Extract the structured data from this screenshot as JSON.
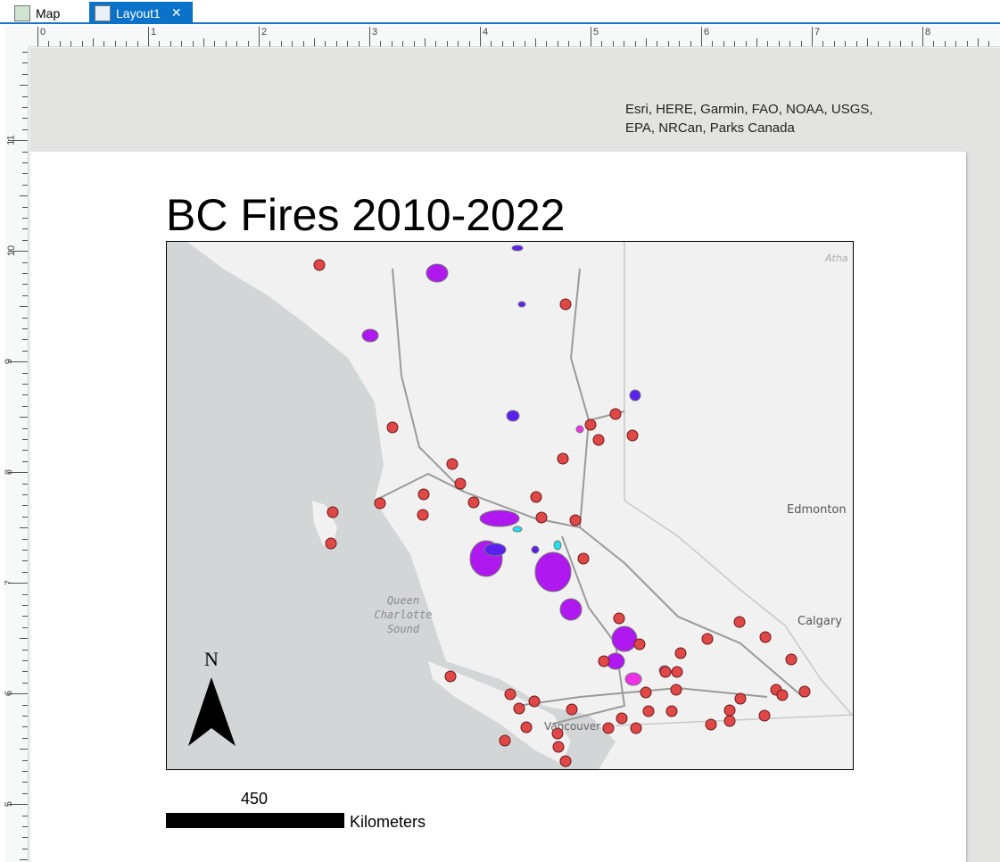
{
  "tabs": [
    {
      "label": "Map",
      "icon": "map-icon",
      "active": false
    },
    {
      "label": "Layout1",
      "icon": "layout-icon",
      "active": true,
      "close": "✕"
    }
  ],
  "ruler": {
    "horizontal": [
      "0",
      "1",
      "2",
      "3",
      "4",
      "5",
      "6",
      "7",
      "8"
    ],
    "vertical": [
      "11",
      "10",
      "9",
      "8",
      "7",
      "6",
      "5"
    ]
  },
  "credits": [
    "Esri, HERE, Garmin, FAO, NOAA, USGS,",
    "EPA, NRCan, Parks Canada"
  ],
  "title": "BC Fires 2010-2022",
  "map": {
    "labels": {
      "edmonton": "Edmonton",
      "calgary": "Calgary",
      "vancouver": "Vancouver",
      "sound": [
        "Queen",
        "Charlotte",
        "Sound"
      ],
      "athabasca": "Atha"
    },
    "colors": {
      "land": "#f1f1f1",
      "water": "#d3d6d7",
      "fire_purple": "#b018f0",
      "fire_blue": "#5a20f0",
      "fire_magenta": "#f030e8",
      "fire_cyan": "#20e0f0",
      "points": "#e04848",
      "roads": "#9a9a9a"
    }
  },
  "north_arrow": "N",
  "scalebar": {
    "value": "450",
    "unit": "Kilometers"
  }
}
